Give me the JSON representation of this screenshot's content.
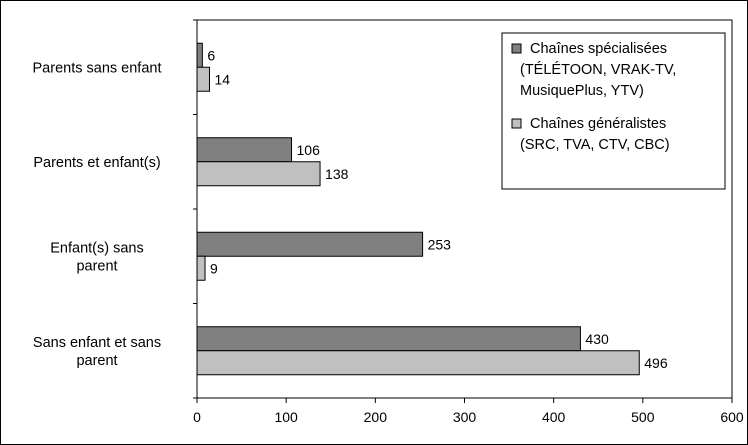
{
  "chart_data": {
    "type": "bar",
    "orientation": "horizontal",
    "categories": [
      [
        "Parents sans enfant"
      ],
      [
        "Parents et enfant(s)"
      ],
      [
        "Enfant(s) sans",
        "parent"
      ],
      [
        "Sans enfant et sans",
        "parent"
      ]
    ],
    "series": [
      {
        "name_lines": [
          "Chaînes spécialisées",
          "(TÉLÉTOON, VRAK-TV,",
          "MusiquePlus, YTV)"
        ],
        "color": "#808080",
        "values": [
          6,
          106,
          253,
          430
        ]
      },
      {
        "name_lines": [
          "Chaînes généralistes",
          "(SRC, TVA, CTV, CBC)"
        ],
        "color": "#c0c0c0",
        "values": [
          14,
          138,
          9,
          496
        ]
      }
    ],
    "xlim": [
      0,
      600
    ],
    "xticks": [
      0,
      100,
      200,
      300,
      400,
      500,
      600
    ],
    "title": "",
    "xlabel": "",
    "ylabel": "",
    "grid": false,
    "legend_position": "top-right"
  }
}
